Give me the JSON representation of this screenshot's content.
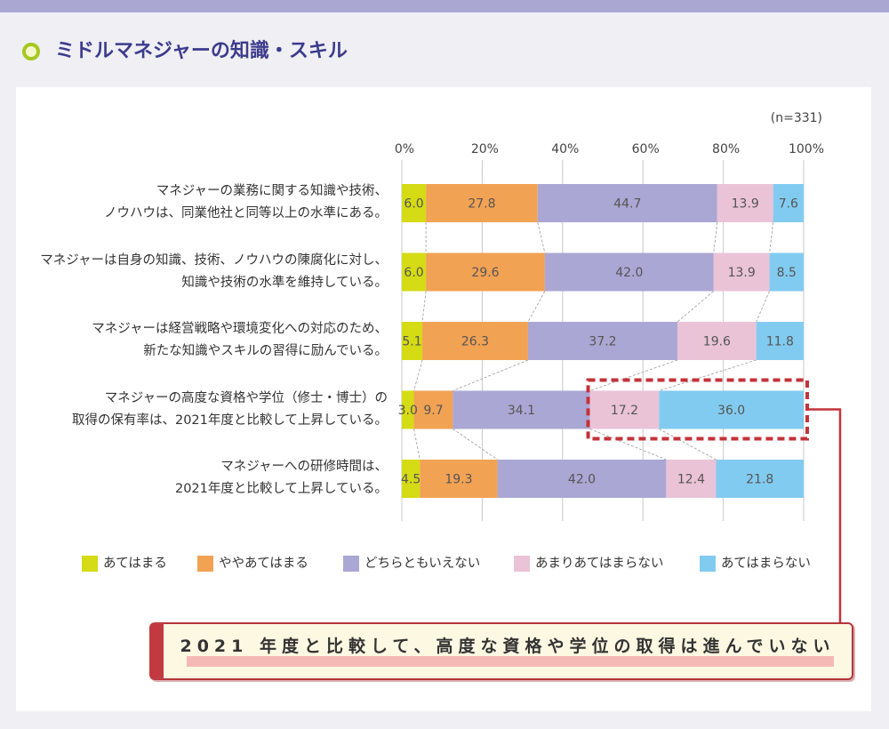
{
  "page": {
    "title": "ミドルマネジャーの知識・スキル"
  },
  "colors": {
    "title": "#3c3b8c",
    "highlight": "#c3323a",
    "callout_marker": "#f5b9b5"
  },
  "chart_data": {
    "type": "bar",
    "orientation": "horizontal",
    "stacked": true,
    "note": "(n=331)",
    "xlim": [
      0,
      100
    ],
    "xticks": [
      0,
      20,
      40,
      60,
      80,
      100
    ],
    "xtick_labels": [
      "0%",
      "20%",
      "40%",
      "60%",
      "80%",
      "100%"
    ],
    "grid": true,
    "legend": "bottom",
    "categories": [
      "マネジャーの業務に関する知識や技術、\nノウハウは、同業他社と同等以上の水準にある。",
      "マネジャーは自身の知識、技術、ノウハウの陳腐化に対し、\n知識や技術の水準を維持している。",
      "マネジャーは経営戦略や環境変化への対応のため、\n新たな知識やスキルの習得に励んでいる。",
      "マネジャーの高度な資格や学位（修士・博士）の\n取得の保有率は、2021年度と比較して上昇している。",
      "マネジャーへの研修時間は、\n2021年度と比較して上昇している。"
    ],
    "series": [
      {
        "name": "あてはまる",
        "color": "#d5db14",
        "values": [
          6.0,
          6.0,
          5.1,
          3.0,
          4.5
        ]
      },
      {
        "name": "ややあてはまる",
        "color": "#f2a253",
        "values": [
          27.8,
          29.6,
          26.3,
          9.7,
          19.3
        ]
      },
      {
        "name": "どちらともいえない",
        "color": "#aaa7d4",
        "values": [
          44.7,
          42.0,
          37.2,
          34.1,
          42.0
        ]
      },
      {
        "name": "あまりあてはまらない",
        "color": "#eac3d7",
        "values": [
          13.9,
          13.9,
          19.6,
          17.2,
          12.4
        ]
      },
      {
        "name": "あてはまらない",
        "color": "#82cbf0",
        "values": [
          7.6,
          8.5,
          11.8,
          36.0,
          21.8
        ]
      }
    ]
  },
  "callout": {
    "text": "2021 年度と比較して、高度な資格や学位の取得は進んでいない"
  }
}
